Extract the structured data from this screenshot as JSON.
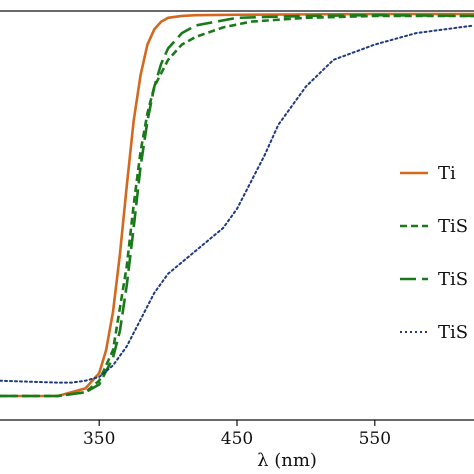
{
  "chart_data": {
    "type": "line",
    "title": "",
    "xlabel": "λ (nm)",
    "ylabel": "",
    "xlim": [
      278,
      622
    ],
    "ylim": [
      0,
      1
    ],
    "x_ticks": [
      350,
      450,
      550
    ],
    "grid": false,
    "legend_placement": "right",
    "series": [
      {
        "name": "Ti",
        "color": "#d2691e",
        "dash": "solid",
        "x": [
          278,
          320,
          340,
          350,
          355,
          360,
          365,
          370,
          375,
          380,
          385,
          390,
          395,
          400,
          410,
          420,
          450,
          500,
          550,
          622
        ],
        "y": [
          0.0,
          0.0,
          0.02,
          0.06,
          0.12,
          0.22,
          0.37,
          0.55,
          0.72,
          0.84,
          0.92,
          0.96,
          0.98,
          0.99,
          0.995,
          0.997,
          0.998,
          0.999,
          1.0,
          1.0
        ]
      },
      {
        "name": "TiS",
        "color": "#1a7a1a",
        "dash": "dashed",
        "x": [
          278,
          320,
          340,
          350,
          360,
          370,
          375,
          380,
          385,
          390,
          400,
          410,
          420,
          440,
          460,
          500,
          550,
          622
        ],
        "y": [
          0.0,
          0.0,
          0.01,
          0.04,
          0.12,
          0.34,
          0.5,
          0.64,
          0.74,
          0.81,
          0.88,
          0.92,
          0.94,
          0.965,
          0.98,
          0.99,
          0.995,
          0.995
        ]
      },
      {
        "name": "TiS",
        "color": "#1a7a1a",
        "dash": "longdash",
        "x": [
          278,
          320,
          340,
          350,
          360,
          365,
          370,
          375,
          380,
          385,
          390,
          395,
          400,
          410,
          420,
          450,
          500,
          550,
          622
        ],
        "y": [
          0.0,
          0.0,
          0.01,
          0.03,
          0.1,
          0.17,
          0.29,
          0.44,
          0.6,
          0.72,
          0.81,
          0.87,
          0.91,
          0.95,
          0.97,
          0.99,
          0.995,
          0.997,
          0.995
        ]
      },
      {
        "name": "TiS",
        "color": "#1f3a80",
        "dash": "dotted",
        "x": [
          278,
          320,
          330,
          340,
          350,
          360,
          370,
          380,
          390,
          400,
          410,
          420,
          430,
          440,
          450,
          460,
          470,
          480,
          500,
          520,
          550,
          580,
          622
        ],
        "y": [
          0.04,
          0.035,
          0.035,
          0.04,
          0.05,
          0.08,
          0.13,
          0.2,
          0.27,
          0.32,
          0.35,
          0.38,
          0.41,
          0.44,
          0.49,
          0.56,
          0.63,
          0.71,
          0.81,
          0.88,
          0.92,
          0.95,
          0.97
        ]
      }
    ]
  }
}
